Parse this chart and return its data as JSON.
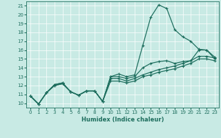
{
  "xlabel": "Humidex (Indice chaleur)",
  "xlim": [
    -0.5,
    23.5
  ],
  "ylim": [
    9.5,
    21.5
  ],
  "yticks": [
    10,
    11,
    12,
    13,
    14,
    15,
    16,
    17,
    18,
    19,
    20,
    21
  ],
  "xticks": [
    0,
    1,
    2,
    3,
    4,
    5,
    6,
    7,
    8,
    9,
    10,
    11,
    12,
    13,
    14,
    15,
    16,
    17,
    18,
    19,
    20,
    21,
    22,
    23
  ],
  "bg_color": "#c8eae4",
  "line_color": "#1e6e5e",
  "grid_color": "#ffffff",
  "lines": [
    {
      "x": [
        0,
        1,
        2,
        3,
        4,
        5,
        6,
        7,
        8,
        9,
        10,
        11,
        12,
        13,
        14,
        15,
        16,
        17,
        18,
        19,
        20,
        21,
        22,
        23
      ],
      "y": [
        10.8,
        9.9,
        11.2,
        12.1,
        12.3,
        11.3,
        10.9,
        11.4,
        11.4,
        10.2,
        13.0,
        13.3,
        13.0,
        13.2,
        16.5,
        19.7,
        21.1,
        20.7,
        18.3,
        17.5,
        17.0,
        16.1,
        16.0,
        15.2
      ]
    },
    {
      "x": [
        0,
        1,
        2,
        3,
        4,
        5,
        6,
        7,
        8,
        9,
        10,
        11,
        12,
        13,
        14,
        15,
        16,
        17,
        18,
        19,
        20,
        21,
        22,
        23
      ],
      "y": [
        10.8,
        9.9,
        11.2,
        12.1,
        12.3,
        11.3,
        10.9,
        11.4,
        11.4,
        10.2,
        13.0,
        13.0,
        12.8,
        13.0,
        14.0,
        14.5,
        14.7,
        14.8,
        14.5,
        14.7,
        14.8,
        16.0,
        16.0,
        15.0
      ]
    },
    {
      "x": [
        0,
        1,
        2,
        3,
        4,
        5,
        6,
        7,
        8,
        9,
        10,
        11,
        12,
        13,
        14,
        15,
        16,
        17,
        18,
        19,
        20,
        21,
        22,
        23
      ],
      "y": [
        10.8,
        9.9,
        11.2,
        12.0,
        12.2,
        11.3,
        10.9,
        11.4,
        11.4,
        10.2,
        12.8,
        12.8,
        12.5,
        12.8,
        13.2,
        13.5,
        13.8,
        14.0,
        14.2,
        14.5,
        14.8,
        15.3,
        15.3,
        15.1
      ]
    },
    {
      "x": [
        0,
        1,
        2,
        3,
        4,
        5,
        6,
        7,
        8,
        9,
        10,
        11,
        12,
        13,
        14,
        15,
        16,
        17,
        18,
        19,
        20,
        21,
        22,
        23
      ],
      "y": [
        10.8,
        9.9,
        11.2,
        12.0,
        12.2,
        11.3,
        10.9,
        11.4,
        11.4,
        10.2,
        12.5,
        12.5,
        12.3,
        12.5,
        13.0,
        13.2,
        13.5,
        13.7,
        13.9,
        14.2,
        14.5,
        15.0,
        15.0,
        14.8
      ]
    }
  ]
}
